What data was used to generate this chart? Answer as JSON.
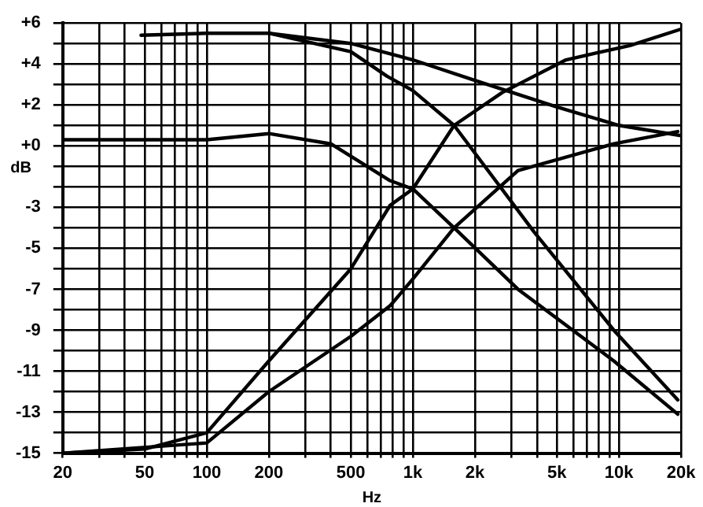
{
  "chart_data": {
    "type": "line",
    "xlabel": "Hz",
    "ylabel": "dB",
    "log": "x",
    "grid": true,
    "legend": false,
    "marker": "none",
    "line_style": "solid",
    "xlim": [
      20,
      20000
    ],
    "ylim": [
      -15,
      6
    ],
    "xticks": [
      20,
      {
        "value": 30,
        "label": null
      },
      {
        "value": 40,
        "label": null
      },
      50,
      {
        "value": 60,
        "label": null
      },
      {
        "value": 70,
        "label": null
      },
      {
        "value": 80,
        "label": null
      },
      {
        "value": 90,
        "label": null
      },
      100,
      200,
      {
        "value": 300,
        "label": null
      },
      {
        "value": 400,
        "label": null
      },
      500,
      {
        "value": 600,
        "label": null
      },
      {
        "value": 700,
        "label": null
      },
      {
        "value": 800,
        "label": null
      },
      {
        "value": 900,
        "label": null
      },
      {
        "value": 1000,
        "label": "1k"
      },
      {
        "value": 2000,
        "label": "2k"
      },
      {
        "value": 3000,
        "label": null
      },
      {
        "value": 4000,
        "label": null
      },
      {
        "value": 5000,
        "label": "5k"
      },
      {
        "value": 6000,
        "label": null
      },
      {
        "value": 7000,
        "label": null
      },
      {
        "value": 8000,
        "label": null
      },
      {
        "value": 9000,
        "label": null
      },
      {
        "value": 10000,
        "label": "10k"
      },
      {
        "value": 20000,
        "label": "20k"
      }
    ],
    "yticks": [
      {
        "value": 6,
        "label": "+6"
      },
      {
        "value": 5,
        "label": null
      },
      {
        "value": 4,
        "label": "+4"
      },
      {
        "value": 3,
        "label": null
      },
      {
        "value": 2,
        "label": "+2"
      },
      {
        "value": 1,
        "label": null
      },
      {
        "value": 0,
        "label": "+0"
      },
      {
        "value": -1,
        "label": null
      },
      {
        "value": -2,
        "label": null
      },
      -3,
      {
        "value": -4,
        "label": null
      },
      -5,
      {
        "value": -6,
        "label": null
      },
      -7,
      {
        "value": -8,
        "label": null
      },
      -9,
      {
        "value": -10,
        "label": null
      },
      -11,
      {
        "value": -12,
        "label": null
      },
      -13,
      {
        "value": -14,
        "label": null
      },
      -15
    ],
    "series": [
      {
        "color": "#000000",
        "x": [
          48,
          100,
          200,
          500,
          750,
          1000,
          1585,
          3874,
          9445,
          19300
        ],
        "values": [
          5.4,
          5.5,
          5.5,
          4.6,
          3.4,
          2.7,
          1.0,
          -4.2,
          -9.0,
          -12.4
        ]
      },
      {
        "color": "#000000",
        "x": [
          200,
          500,
          1000,
          2000,
          5000,
          10000,
          20000
        ],
        "values": [
          5.5,
          5.0,
          4.2,
          3.2,
          1.9,
          1.0,
          0.5
        ]
      },
      {
        "color": "#000000",
        "x": [
          20,
          100,
          200,
          400,
          776,
          1000,
          1585,
          3237,
          9445,
          19300
        ],
        "values": [
          0.3,
          0.3,
          0.6,
          0.1,
          -1.7,
          -2.1,
          -4.0,
          -7.0,
          -10.5,
          -13.1
        ]
      },
      {
        "color": "#000000",
        "x": [
          20,
          50,
          100,
          200,
          500,
          776,
          1000,
          1585,
          2710,
          5534,
          11300,
          20000
        ],
        "values": [
          -15,
          -14.8,
          -14.0,
          -10.5,
          -6.0,
          -2.9,
          -2.1,
          1.0,
          2.6,
          4.2,
          4.9,
          5.7
        ]
      },
      {
        "color": "#000000",
        "x": [
          20,
          100,
          200,
          500,
          776,
          1000,
          1585,
          3237,
          9445,
          19300
        ],
        "values": [
          -15,
          -14.5,
          -12.0,
          -9.3,
          -7.8,
          -6.5,
          -4.0,
          -1.2,
          0.1,
          0.7
        ]
      }
    ]
  }
}
